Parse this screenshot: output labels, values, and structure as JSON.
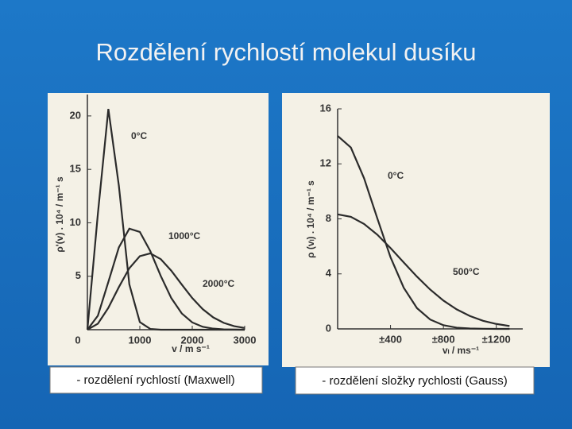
{
  "title": "Rozdělení rychlostí molekul dusíku",
  "chart_data": [
    {
      "type": "line",
      "caption": "- rozdělení rychlostí (Maxwell)",
      "x_label": "v / m s⁻¹",
      "y_label": "ρ'(v) . 10⁴ / m⁻¹ s",
      "x": [
        0,
        200,
        400,
        600,
        800,
        1000,
        1200,
        1400,
        1600,
        1800,
        2000,
        2200,
        2400,
        2600,
        2800,
        3000
      ],
      "xlim": [
        0,
        3000
      ],
      "ylim": [
        0,
        22
      ],
      "xticks": [
        0,
        1000,
        2000,
        3000
      ],
      "yticks": [
        5,
        10,
        15,
        20
      ],
      "series": [
        {
          "name": "0°C",
          "color": "#2b2b2b",
          "values": [
            0,
            10.85,
            20.65,
            13.48,
            4.24,
            0.71,
            0.07,
            0,
            0,
            0,
            0,
            0,
            0,
            0,
            0,
            0
          ]
        },
        {
          "name": "1000°C",
          "color": "#2b2b2b",
          "values": [
            0,
            1.31,
            4.47,
            7.7,
            9.45,
            9.15,
            7.35,
            5.02,
            2.96,
            1.52,
            0.68,
            0.27,
            0.1,
            0.03,
            0.01,
            0
          ]
        },
        {
          "name": "2000°C",
          "color": "#2b2b2b",
          "values": [
            0,
            0.56,
            2.05,
            3.98,
            5.75,
            6.88,
            7.14,
            6.6,
            5.52,
            4.22,
            2.96,
            1.92,
            1.15,
            0.64,
            0.33,
            0.16
          ]
        }
      ]
    },
    {
      "type": "line",
      "caption": "- rozdělení složky rychlosti (Gauss)",
      "x_label": "vₗ / ms⁻¹",
      "y_label": "ρ (vₗ) . 10⁴ / m⁻¹ s",
      "x": [
        0,
        100,
        200,
        300,
        400,
        500,
        600,
        700,
        800,
        900,
        1000,
        1100,
        1200,
        1300
      ],
      "xlim": [
        0,
        1400
      ],
      "ylim": [
        0,
        16
      ],
      "xticks": [
        {
          "value": 400,
          "label": "±400"
        },
        {
          "value": 800,
          "label": "±800"
        },
        {
          "value": 1200,
          "label": "±1200"
        }
      ],
      "yticks": [
        0,
        4,
        8,
        12,
        16
      ],
      "series": [
        {
          "name": "0°C",
          "color": "#2b2b2b",
          "values": [
            14.03,
            13.19,
            10.95,
            8.04,
            5.21,
            2.99,
            1.51,
            0.68,
            0.27,
            0.09,
            0.03,
            0.01,
            0,
            0
          ]
        },
        {
          "name": "500°C",
          "color": "#2b2b2b",
          "values": [
            8.33,
            8.15,
            7.63,
            6.85,
            5.88,
            4.83,
            3.8,
            2.86,
            2.06,
            1.42,
            0.94,
            0.59,
            0.36,
            0.21
          ]
        }
      ]
    }
  ]
}
